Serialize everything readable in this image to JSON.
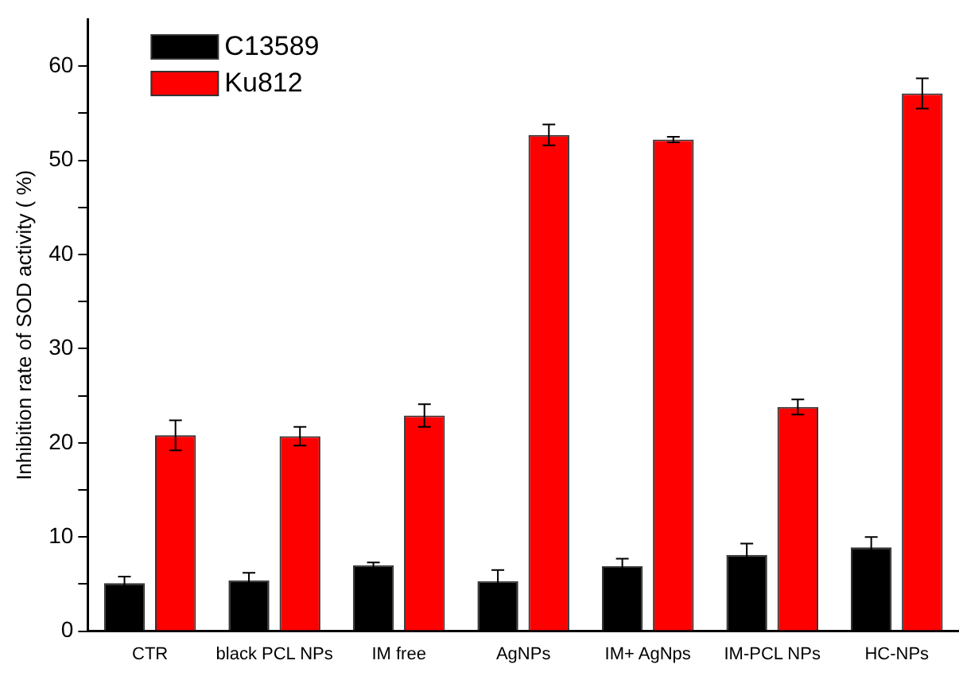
{
  "chart_data": {
    "type": "bar",
    "ylabel": "Inhibition rate of SOD activity ( %)",
    "categories": [
      "CTR",
      "black PCL NPs",
      "IM free",
      "AgNPs",
      "IM+ AgNps",
      "IM-PCL NPs",
      "HC-NPs"
    ],
    "series": [
      {
        "name": "C13589",
        "color": "#000000",
        "values": [
          5.1,
          5.4,
          7.0,
          5.3,
          6.9,
          8.1,
          8.9
        ],
        "errors": [
          0.7,
          0.8,
          0.3,
          1.2,
          0.8,
          1.2,
          1.1
        ]
      },
      {
        "name": "Ku812",
        "color": "#ff0000",
        "values": [
          20.8,
          20.7,
          22.9,
          52.7,
          52.2,
          23.8,
          57.1
        ],
        "errors": [
          1.6,
          1.0,
          1.2,
          1.1,
          0.3,
          0.8,
          1.6
        ]
      }
    ],
    "ylim": [
      0,
      65
    ],
    "yticks": [
      0,
      {
        "value": 5,
        "label": null
      },
      10,
      {
        "value": 15,
        "label": null
      },
      20,
      {
        "value": 25,
        "label": null
      },
      30,
      {
        "value": 35,
        "label": null
      },
      40,
      {
        "value": 45,
        "label": null
      },
      50,
      {
        "value": 55,
        "label": null
      },
      60
    ],
    "grid": false,
    "legend": "top left"
  }
}
